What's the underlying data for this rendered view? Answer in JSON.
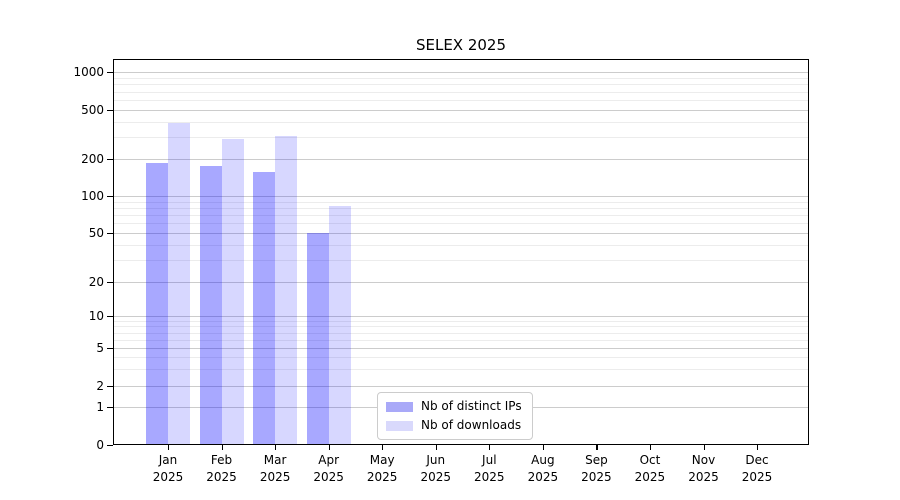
{
  "chart_data": {
    "type": "bar",
    "title": "SELEX 2025",
    "x_year": "2025",
    "categories": [
      "Jan",
      "Feb",
      "Mar",
      "Apr",
      "May",
      "Jun",
      "Jul",
      "Aug",
      "Sep",
      "Oct",
      "Nov",
      "Dec"
    ],
    "series": [
      {
        "name": "distinct-ips",
        "label": "Nb of distinct IPs",
        "color": "rgba(0,0,255,0.34)",
        "swatch_color": "#a9a9f8",
        "values": [
          185,
          175,
          158,
          50,
          0,
          0,
          0,
          0,
          0,
          0,
          0,
          0
        ]
      },
      {
        "name": "downloads",
        "label": "Nb of downloads",
        "color": "rgba(0,0,255,0.155)",
        "swatch_color": "#d9d9fc",
        "values": [
          390,
          290,
          310,
          83,
          0,
          0,
          0,
          0,
          0,
          0,
          0,
          0
        ]
      }
    ],
    "y_axis": {
      "scale": "symlog",
      "ylim": [
        0,
        1000
      ],
      "major_ticks": [
        0,
        1,
        2,
        5,
        10,
        20,
        50,
        100,
        200,
        500,
        1000
      ],
      "minor_gridline_values": [
        3,
        4,
        6,
        7,
        8,
        9,
        30,
        40,
        60,
        70,
        80,
        90,
        300,
        400,
        600,
        700,
        800,
        900
      ]
    },
    "grid": "major-and-minor-horizontal",
    "legend_position": "lower-center",
    "colors": {
      "grid_major": "#cccccc",
      "grid_minor": "#ececec",
      "spine": "#000000",
      "background": "#ffffff"
    }
  }
}
